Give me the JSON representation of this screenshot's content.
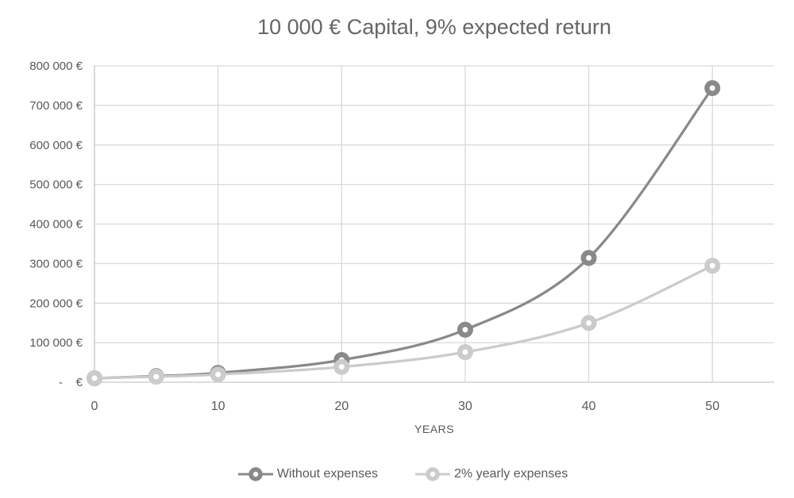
{
  "chart_data": {
    "type": "line",
    "title": "10 000 € Capital, 9% expected return",
    "xlabel": "YEARS",
    "ylabel": "",
    "x": [
      0,
      5,
      10,
      20,
      30,
      40,
      50
    ],
    "series": [
      {
        "name": "Without expenses",
        "color": "#898989",
        "values": [
          10000,
          15386,
          23674,
          56044,
          132677,
          314094,
          743575
        ]
      },
      {
        "name": "2% yearly expenses",
        "color": "#cbcbcb",
        "values": [
          10000,
          14026,
          19672,
          38697,
          76123,
          149745,
          294570
        ]
      }
    ],
    "xlim": [
      0,
      55
    ],
    "ylim": [
      0,
      800000
    ],
    "x_ticks": [
      0,
      10,
      20,
      30,
      40,
      50
    ],
    "y_ticks": [
      0,
      100000,
      200000,
      300000,
      400000,
      500000,
      600000,
      700000,
      800000
    ],
    "y_tick_labels": [
      "-    €",
      "100 000 €",
      "200 000 €",
      "300 000 €",
      "400 000 €",
      "500 000 €",
      "600 000 €",
      "700 000 €",
      "800 000 €"
    ],
    "grid": true,
    "marker": "donut",
    "legend_position": "bottom"
  },
  "colors": {
    "gridline": "#d9d9d9",
    "axis_line": "#c6c6c6",
    "tick_text": "#595959",
    "title_text": "#666666",
    "marker_hole": "#ffffff",
    "background": "#ffffff"
  }
}
